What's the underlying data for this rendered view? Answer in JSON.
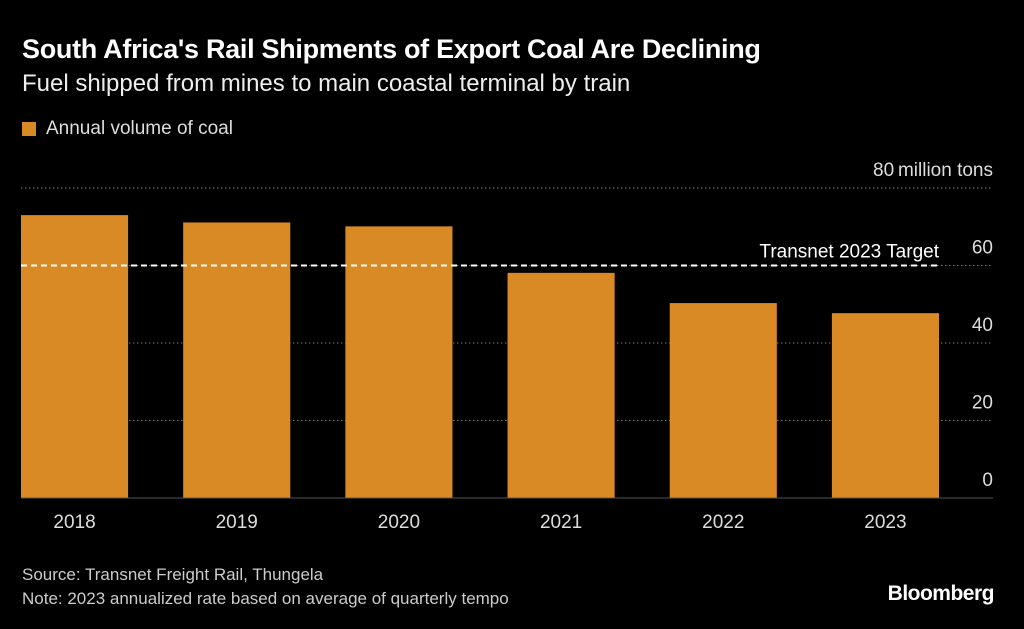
{
  "chart_data": {
    "type": "bar",
    "title": "South Africa's Rail Shipments of Export Coal Are Declining",
    "subtitle": "Fuel shipped from mines to main coastal terminal by train",
    "categories": [
      "2018",
      "2019",
      "2020",
      "2021",
      "2022",
      "2023"
    ],
    "series": [
      {
        "name": "Annual volume of coal",
        "values": [
          73.0,
          71.1,
          70.1,
          58.1,
          50.3,
          47.7
        ],
        "color": "#DA8A25"
      }
    ],
    "ylim": [
      0,
      80
    ],
    "yticks": [
      0,
      20,
      40,
      60,
      80
    ],
    "ytick_labels": [
      "0",
      "20",
      "40",
      "60",
      "80"
    ],
    "yunit": "million tons",
    "grid": true,
    "legend": "top-left",
    "reference_line": {
      "label": "Transnet 2023 Target",
      "value": 60,
      "style": "dashed",
      "color": "#ffffff"
    }
  },
  "footer": {
    "source": "Source: Transnet Freight Rail, Thungela",
    "note": "Note: 2023 annualized rate based on average of quarterly tempo",
    "brand": "Bloomberg"
  }
}
